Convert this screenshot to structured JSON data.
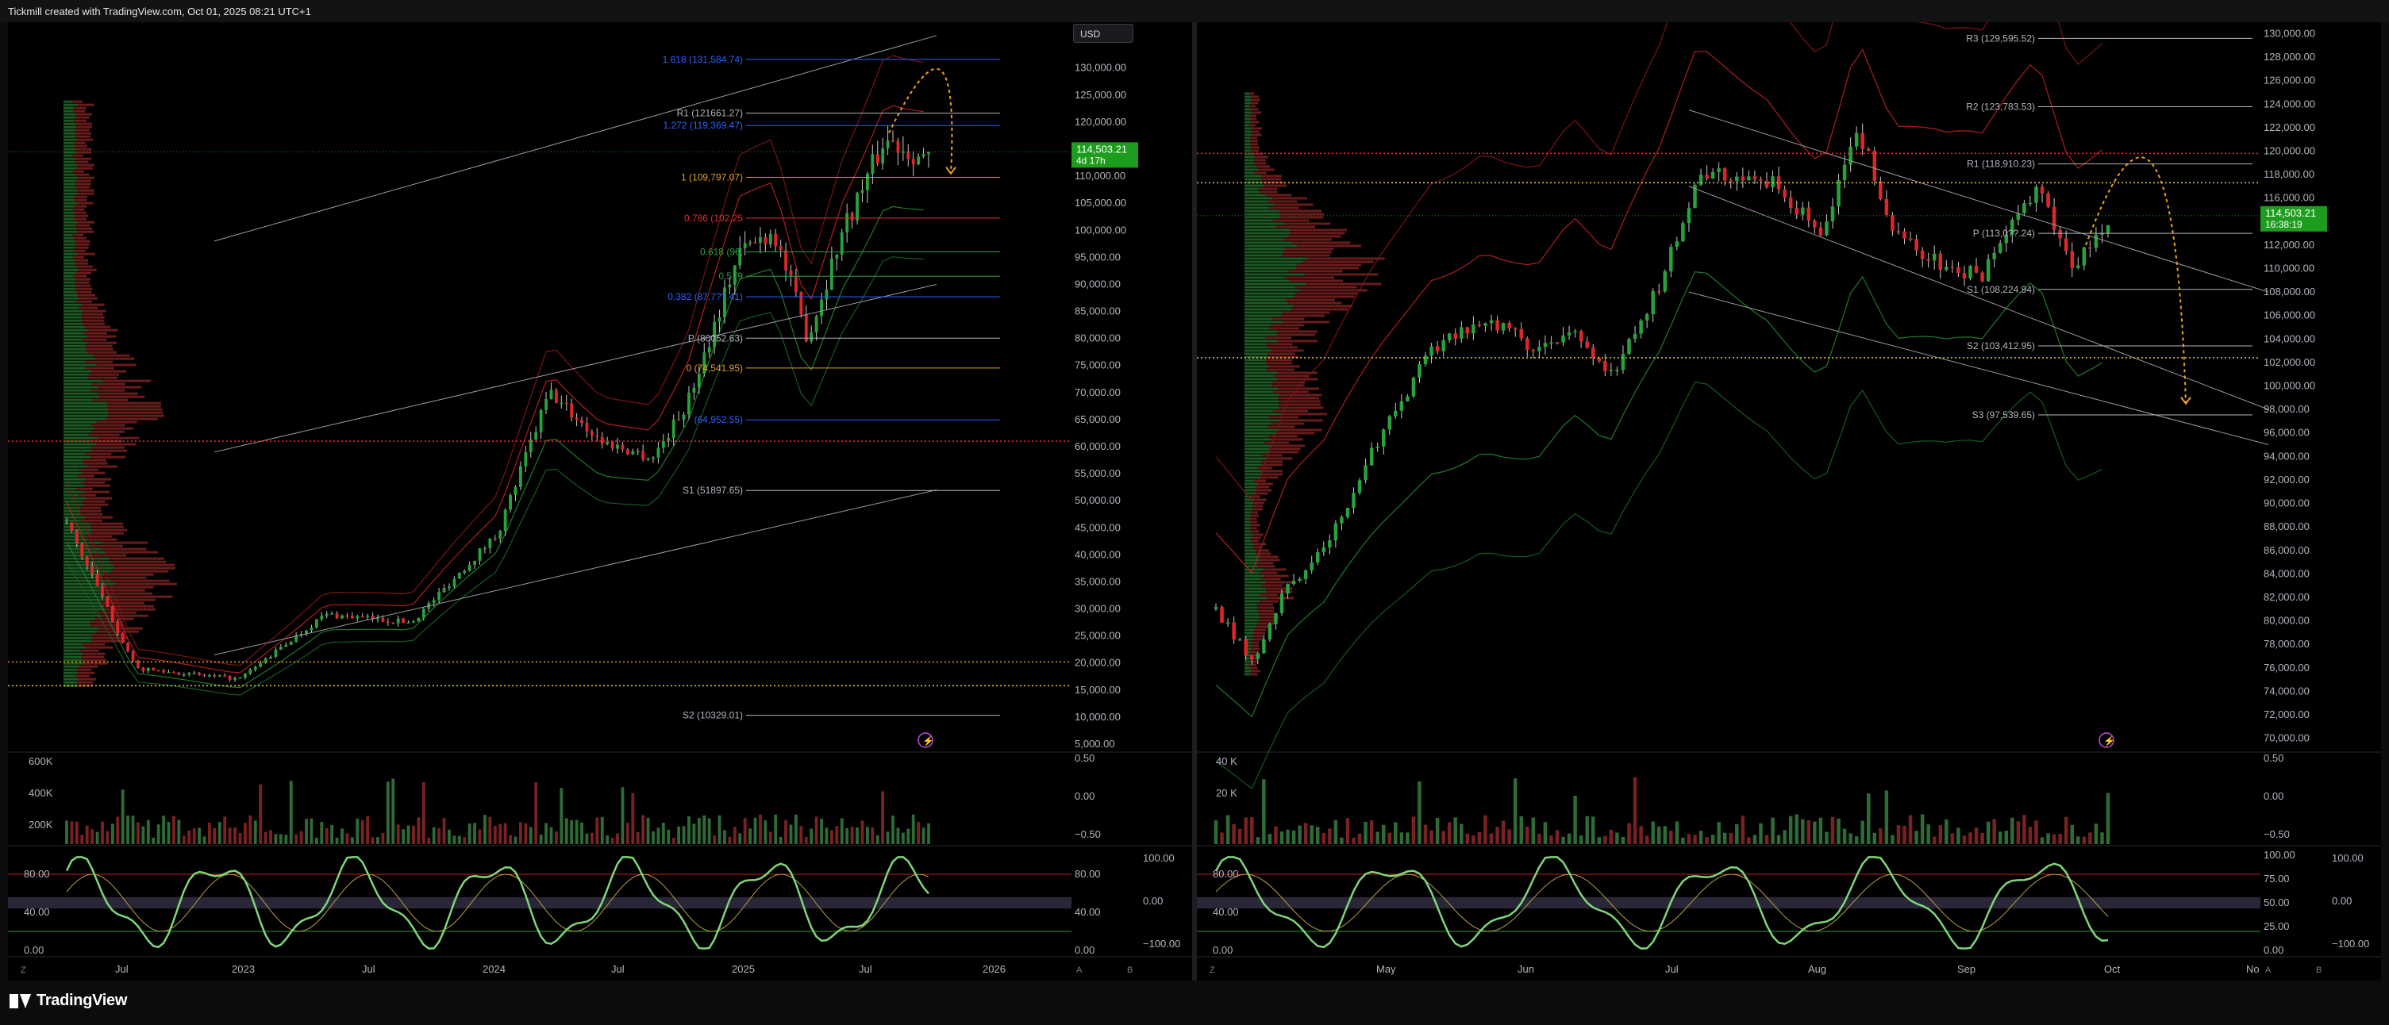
{
  "header": {
    "attribution": "Tickmill created with TradingView.com, Oct 01, 2025 08:21 UTC+1"
  },
  "footer": {
    "brand": "TradingView"
  },
  "currency_button": "USD",
  "colors": {
    "up": "#26a33a",
    "down": "#e0252a",
    "volume_up": "#2e6b35",
    "volume_down": "#7a2222",
    "price_tag": "#1e9c1e",
    "fib_orange": "#e0a020",
    "fib_blue": "#2962ff",
    "pivot_white": "#b2b5be",
    "projection": "#f0a020",
    "dot_red": "#e03030",
    "dot_yellow": "#e6d23a",
    "stoch_up": "#7fd67a",
    "stoch_down": "#f07a7a"
  },
  "chart_data": [
    {
      "type": "candlestick",
      "pane": "left",
      "timeframe_labels": [
        "Jul",
        "2023",
        "Jul",
        "2024",
        "Jul",
        "2025",
        "Jul",
        "2026"
      ],
      "y_axis": [
        "130,000.00",
        "125,000.00",
        "120,000.00",
        "115,000.00",
        "110,000.00",
        "105,000.00",
        "100,000.00",
        "95,000.00",
        "90,000.00",
        "85,000.00",
        "80,000.00",
        "75,000.00",
        "70,000.00",
        "65,000.00",
        "60,000.00",
        "55,000.00",
        "50,000.00",
        "45,000.00",
        "40,000.00",
        "35,000.00",
        "30,000.00",
        "25,000.00",
        "20,000.00",
        "15,000.00",
        "10,000.00",
        "5,000.00"
      ],
      "ylim": [
        5000,
        137000
      ],
      "last_price": "114,503.21",
      "countdown": "4d 17h",
      "levels": [
        {
          "label": "1.618 (131,584.74)",
          "value": 131584.74,
          "color": "#2962ff"
        },
        {
          "label": "R1 (121661.27)",
          "value": 121661.27,
          "color": "#b2b5be"
        },
        {
          "label": "1.272 (119,369.47)",
          "value": 119369.47,
          "color": "#2962ff"
        },
        {
          "label": "1 (109,797.07)",
          "value": 109797.07,
          "color": "#e0a020"
        },
        {
          "label": "0.786 (102,25",
          "value": 102250,
          "color": "#e03030"
        },
        {
          "label": "0.618 (96,",
          "value": 96000,
          "color": "#2e9e3e"
        },
        {
          "label": "0.5 (9",
          "value": 91500,
          "color": "#2e9e3e"
        },
        {
          "label": "0.382 (87,7??.41)",
          "value": 87700,
          "color": "#2962ff"
        },
        {
          "label": "P (80052.63)",
          "value": 80052.63,
          "color": "#b2b5be"
        },
        {
          "label": "0 (74,541.95)",
          "value": 74541.95,
          "color": "#e0a020"
        },
        {
          "label": "(64,952.55)",
          "value": 64952.55,
          "color": "#2962ff"
        },
        {
          "label": "S1 (51897.65)",
          "value": 51897.65,
          "color": "#b2b5be"
        },
        {
          "label": "S2 (10329.01)",
          "value": 10329.01,
          "color": "#b2b5be"
        }
      ],
      "volume_axis": [
        "600K",
        "400K",
        "200K"
      ],
      "indicator_axis_left": [
        "80.00",
        "40.00",
        "0.00"
      ],
      "indicator_axis_right": [
        "0.50",
        "0.00",
        "−0.50",
        "100.00",
        "0.00",
        "−100.00"
      ],
      "stoch_right_labels": [
        "80.00",
        "40.00",
        "0.00"
      ]
    },
    {
      "type": "candlestick",
      "pane": "right",
      "timeframe_labels": [
        "May",
        "Jun",
        "Jul",
        "Aug",
        "Sep",
        "Oct",
        "No"
      ],
      "y_axis": [
        "130,000.00",
        "128,000.00",
        "126,000.00",
        "124,000.00",
        "122,000.00",
        "120,000.00",
        "118,000.00",
        "116,000.00",
        "114,000.00",
        "112,000.00",
        "110,000.00",
        "108,000.00",
        "106,000.00",
        "104,000.00",
        "102,000.00",
        "100,000.00",
        "98,000.00",
        "96,000.00",
        "94,000.00",
        "92,000.00",
        "90,000.00",
        "88,000.00",
        "86,000.00",
        "84,000.00",
        "82,000.00",
        "80,000.00",
        "78,000.00",
        "76,000.00",
        "74,000.00",
        "72,000.00",
        "70,000.00"
      ],
      "ylim": [
        69500,
        130300
      ],
      "last_price": "114,503.21",
      "countdown": "16:38:19",
      "levels": [
        {
          "label": "R3 (129,595.52)",
          "value": 129595.52
        },
        {
          "label": "R2 (123,783.53)",
          "value": 123783.53
        },
        {
          "label": "R1 (118,910.23)",
          "value": 118910.23
        },
        {
          "label": "P (113,0??.24)",
          "value": 113000
        },
        {
          "label": "S1 (108,224.94)",
          "value": 108224.94
        },
        {
          "label": "S2 (103,412.95)",
          "value": 103412.95
        },
        {
          "label": "S3 (97,539.65)",
          "value": 97539.65
        }
      ],
      "volume_axis": [
        "40 K",
        "20 K"
      ],
      "indicator_axis_left": [
        "80.00",
        "40.00",
        "0.00"
      ],
      "indicator_axis_right": [
        "0.50",
        "0.00",
        "−0.50",
        "100.00",
        "0.00",
        "−100.00"
      ],
      "stoch_right_labels": [
        "100.00",
        "75.00",
        "50.00",
        "25.00",
        "0.00"
      ]
    }
  ]
}
